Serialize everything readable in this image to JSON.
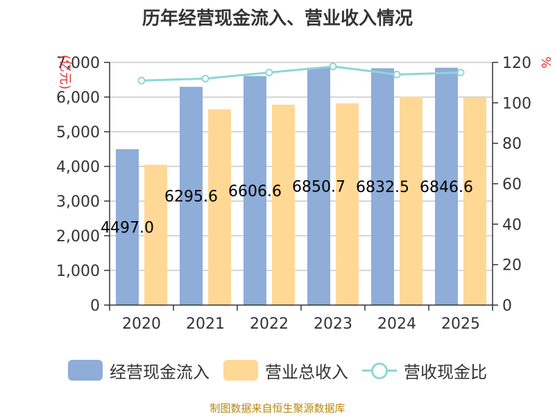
{
  "title": "历年经营现金流入、营业收入情况",
  "source": "制图数据来自恒生聚源数据库",
  "colors": {
    "cash": "#8eadd8",
    "revenue": "#ffd896",
    "ratio": "#8ed6d6"
  },
  "legend": {
    "cash": "经营现金流入",
    "revenue": "营业总收入",
    "ratio": "营收现金比"
  },
  "chart_data": {
    "type": "bar",
    "title": "历年经营现金流入、营业收入情况",
    "categories": [
      "2020",
      "2021",
      "2022",
      "2023",
      "2024",
      "2025"
    ],
    "ylabel": "(亿元)",
    "y2label": "%",
    "ylim": [
      0,
      7000
    ],
    "y2lim": [
      0,
      120
    ],
    "yticks": [
      "0",
      "1,000",
      "2,000",
      "3,000",
      "4,000",
      "5,000",
      "6,000",
      "7,000"
    ],
    "y2ticks": [
      "0",
      "20",
      "40",
      "60",
      "80",
      "100",
      "120"
    ],
    "series": [
      {
        "name": "经营现金流入",
        "type": "bar",
        "values": [
          4497.0,
          6295.6,
          6606.6,
          6850.7,
          6832.5,
          6846.6
        ],
        "data_labels": [
          "4497.0",
          "6295.6",
          "6606.6",
          "6850.7",
          "6832.5",
          "6846.6"
        ]
      },
      {
        "name": "营业总收入",
        "type": "bar",
        "values": [
          4050,
          5650,
          5780,
          5820,
          6010,
          5990
        ]
      },
      {
        "name": "营收现金比",
        "type": "line",
        "axis": "right",
        "values": [
          111,
          112,
          115,
          118,
          114,
          115
        ]
      }
    ],
    "grid": true,
    "legend_position": "bottom"
  }
}
